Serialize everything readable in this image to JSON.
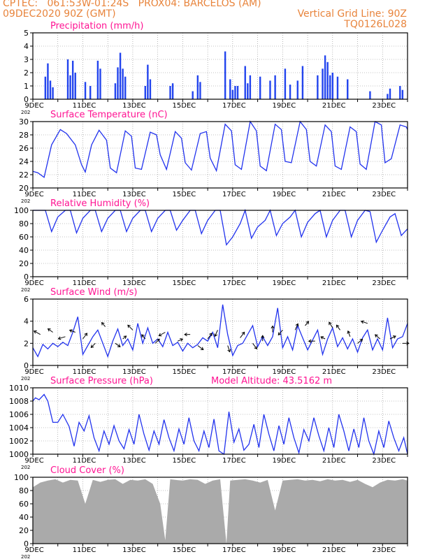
{
  "header": {
    "left_line1": "CPTEC:   061:53W-01:24S   PROX04: BARCELOS (AM)",
    "left_line2": "09DEC2020 90Z (GMT)",
    "right_line1": "Vertical Grid Line: 90Z",
    "right_line2": "TQ0126L028"
  },
  "colors": {
    "header": "#e8843c",
    "title": "#ff1493",
    "line": "#2233ee",
    "bar": "#2244ee",
    "cloud": "#aaaaaa",
    "grid": "#888888"
  },
  "x_tick_labels": [
    "9DEC",
    "11DEC",
    "13DEC",
    "15DEC",
    "17DEC",
    "19DEC",
    "21DEC",
    "23DEC"
  ],
  "corner_label": "202",
  "chart_data": [
    {
      "type": "bar",
      "title": "Precipitation (mm/h)",
      "ylim": [
        0,
        5
      ],
      "yticks": [
        0,
        1,
        2,
        3,
        4,
        5
      ],
      "x_range_days": [
        9,
        24
      ],
      "x_unit": "day of Dec 2020",
      "grid": true,
      "series": [
        {
          "x": [
            9.5,
            9.6,
            9.7,
            9.8,
            10.4,
            10.5,
            10.6,
            10.7,
            11.1,
            11.3,
            11.6,
            11.7,
            12.3,
            12.4,
            12.5,
            12.6,
            12.7,
            13.5,
            13.6,
            13.7,
            14.5,
            14.6,
            15.4,
            15.6,
            15.7,
            16.7,
            16.9,
            17.0,
            17.1,
            17.2,
            17.5,
            17.6,
            17.7,
            18.1,
            18.5,
            18.7,
            19.1,
            19.3,
            19.6,
            19.8,
            20.4,
            20.6,
            20.7,
            20.8,
            20.9,
            21.0,
            21.2,
            21.6,
            22.5,
            23.2,
            23.3,
            23.7,
            23.8
          ],
          "values": [
            1.7,
            2.7,
            1.4,
            0.9,
            3.0,
            1.8,
            2.9,
            2.0,
            1.3,
            1.0,
            2.9,
            2.3,
            1.2,
            2.4,
            3.5,
            2.3,
            1.7,
            1.0,
            2.6,
            1.5,
            1.0,
            1.2,
            0.6,
            1.8,
            1.3,
            3.6,
            1.5,
            0.7,
            1.0,
            1.0,
            2.5,
            1.2,
            1.8,
            1.7,
            1.4,
            1.8,
            2.3,
            1.1,
            1.4,
            2.5,
            1.8,
            2.3,
            3.3,
            2.8,
            1.8,
            2.0,
            1.7,
            1.5,
            0.6,
            0.4,
            0.8,
            1.0,
            0.7
          ]
        }
      ]
    },
    {
      "type": "line",
      "title": "Surface Temperature (nC)",
      "ylim": [
        20,
        30
      ],
      "yticks": [
        20,
        22,
        24,
        26,
        28,
        30
      ],
      "x_range_days": [
        9,
        24
      ],
      "grid": true,
      "series": [
        {
          "x": [
            9.0,
            9.2,
            9.45,
            9.75,
            10.1,
            10.35,
            10.7,
            10.95,
            11.1,
            11.35,
            11.65,
            11.95,
            12.1,
            12.35,
            12.7,
            12.95,
            13.1,
            13.35,
            13.7,
            13.95,
            14.1,
            14.35,
            14.7,
            14.95,
            15.1,
            15.35,
            15.7,
            15.95,
            16.1,
            16.35,
            16.7,
            16.95,
            17.1,
            17.35,
            17.7,
            17.95,
            18.1,
            18.35,
            18.7,
            18.95,
            19.1,
            19.35,
            19.7,
            19.95,
            20.1,
            20.35,
            20.7,
            20.95,
            21.1,
            21.35,
            21.7,
            21.95,
            22.1,
            22.35,
            22.7,
            22.95,
            23.1,
            23.35,
            23.7,
            23.95,
            24.0
          ],
          "values": [
            22.5,
            22.3,
            21.6,
            26.5,
            28.8,
            28.2,
            26.5,
            23.5,
            22.4,
            26.5,
            28.7,
            27.2,
            23.0,
            22.3,
            28.6,
            27.8,
            23.0,
            22.8,
            28.4,
            28.0,
            25.0,
            22.8,
            28.5,
            27.5,
            23.8,
            22.7,
            28.2,
            28.5,
            24.5,
            22.6,
            29.6,
            28.6,
            23.5,
            22.8,
            30.0,
            28.6,
            23.3,
            22.6,
            29.6,
            28.8,
            24.0,
            23.8,
            30.2,
            28.8,
            24.0,
            23.3,
            29.5,
            28.5,
            23.3,
            22.8,
            29.2,
            28.5,
            23.6,
            22.8,
            30.2,
            29.5,
            23.8,
            24.4,
            29.5,
            29.2,
            28.8
          ]
        }
      ]
    },
    {
      "type": "line",
      "title": "Relative Humidity (%)",
      "ylim": [
        0,
        100
      ],
      "yticks": [
        0,
        20,
        40,
        60,
        80,
        100
      ],
      "x_range_days": [
        9,
        24
      ],
      "grid": true,
      "series": [
        {
          "x": [
            9.0,
            9.3,
            9.5,
            9.75,
            10.0,
            10.3,
            10.5,
            10.75,
            11.0,
            11.3,
            11.5,
            11.75,
            12.0,
            12.3,
            12.5,
            12.75,
            13.0,
            13.3,
            13.5,
            13.75,
            14.0,
            14.3,
            14.5,
            14.75,
            15.0,
            15.3,
            15.5,
            15.75,
            16.0,
            16.3,
            16.5,
            16.75,
            17.0,
            17.3,
            17.5,
            17.75,
            18.0,
            18.3,
            18.5,
            18.75,
            19.0,
            19.3,
            19.5,
            19.75,
            20.0,
            20.3,
            20.5,
            20.75,
            21.0,
            21.3,
            21.5,
            21.75,
            22.0,
            22.3,
            22.5,
            22.75,
            23.0,
            23.3,
            23.5,
            23.75,
            24.0
          ],
          "values": [
            100,
            100,
            100,
            68,
            90,
            100,
            100,
            66,
            88,
            100,
            100,
            68,
            88,
            100,
            100,
            68,
            88,
            100,
            100,
            68,
            88,
            100,
            100,
            70,
            85,
            100,
            100,
            65,
            85,
            100,
            100,
            48,
            60,
            80,
            100,
            58,
            75,
            85,
            100,
            62,
            80,
            90,
            100,
            60,
            82,
            95,
            100,
            60,
            85,
            100,
            100,
            60,
            85,
            100,
            98,
            52,
            70,
            90,
            95,
            62,
            72
          ]
        }
      ]
    },
    {
      "type": "line",
      "title": "Surface Wind (m/s)",
      "ylim": [
        0,
        6
      ],
      "yticks": [
        0,
        2,
        4,
        6
      ],
      "x_range_days": [
        9,
        24
      ],
      "grid": true,
      "series": [
        {
          "x": [
            9.0,
            9.2,
            9.4,
            9.6,
            9.8,
            10.0,
            10.2,
            10.4,
            10.6,
            10.8,
            11.0,
            11.2,
            11.4,
            11.6,
            11.8,
            12.0,
            12.2,
            12.4,
            12.6,
            12.8,
            13.0,
            13.2,
            13.4,
            13.6,
            13.8,
            14.0,
            14.2,
            14.4,
            14.6,
            14.8,
            15.0,
            15.2,
            15.4,
            15.6,
            15.8,
            16.0,
            16.2,
            16.4,
            16.6,
            16.8,
            17.0,
            17.2,
            17.4,
            17.6,
            17.8,
            18.0,
            18.2,
            18.4,
            18.6,
            18.8,
            19.0,
            19.2,
            19.4,
            19.6,
            19.8,
            20.0,
            20.2,
            20.4,
            20.6,
            20.8,
            21.0,
            21.2,
            21.4,
            21.6,
            21.8,
            22.0,
            22.2,
            22.4,
            22.6,
            22.8,
            23.0,
            23.2,
            23.4,
            23.6,
            23.8,
            24.0
          ],
          "values": [
            1.6,
            0.8,
            1.9,
            1.5,
            2.0,
            1.7,
            2.1,
            1.8,
            3.0,
            4.4,
            1.0,
            1.8,
            2.6,
            3.2,
            2.0,
            0.8,
            2.2,
            3.3,
            1.8,
            2.4,
            1.4,
            3.8,
            2.0,
            3.4,
            2.0,
            2.4,
            1.7,
            3.0,
            1.8,
            2.1,
            1.3,
            2.0,
            1.6,
            1.9,
            2.5,
            2.2,
            3.0,
            1.6,
            5.5,
            2.8,
            0.9,
            1.8,
            2.0,
            2.8,
            3.6,
            1.7,
            2.6,
            1.8,
            2.6,
            5.2,
            1.6,
            2.6,
            1.4,
            3.6,
            2.5,
            1.4,
            2.3,
            3.2,
            1.0,
            2.4,
            3.4,
            1.7,
            2.5,
            1.5,
            2.4,
            1.2,
            2.5,
            3.2,
            1.4,
            2.4,
            1.4,
            4.3,
            1.6,
            2.4,
            2.6,
            3.8
          ]
        }
      ],
      "vectors": {
        "x": [
          9.3,
          9.8,
          10.3,
          10.7,
          11.0,
          11.5,
          11.9,
          12.3,
          12.6,
          13.0,
          13.5,
          13.9,
          14.3,
          14.8,
          15.3,
          15.6,
          16.0,
          16.4,
          16.8,
          17.3,
          17.8,
          18.2,
          18.6,
          19.0,
          19.5,
          19.9,
          20.3,
          20.7,
          21.0,
          21.3,
          21.7,
          22.0,
          22.4,
          22.9,
          23.3,
          23.8
        ],
        "y": [
          2.8,
          3.0,
          2.6,
          3.0,
          2.4,
          2.0,
          3.5,
          2.0,
          2.4,
          3.2,
          2.4,
          2.0,
          3.0,
          2.2,
          2.8,
          1.8,
          2.4,
          3.2,
          1.8,
          2.5,
          2.0,
          2.2,
          3.0,
          3.2,
          3.2,
          3.6,
          2.2,
          2.4,
          3.4,
          3.2,
          2.6,
          2.0,
          3.8,
          2.4,
          2.4,
          2.0
        ],
        "u": [
          -0.9,
          -0.7,
          -1.0,
          -0.8,
          0.6,
          -0.6,
          -0.5,
          0.7,
          0.5,
          -0.7,
          -0.5,
          0.6,
          -0.9,
          0.7,
          -0.8,
          0.8,
          0.6,
          -0.4,
          0.3,
          0.6,
          0.6,
          0.0,
          0.0,
          -0.6,
          0.4,
          0.5,
          -0.9,
          -0.6,
          -0.5,
          -0.5,
          -0.3,
          0.7,
          -0.9,
          -0.7,
          0.8,
          0.9
        ],
        "v": [
          0.5,
          0.5,
          -0.3,
          0.3,
          0.8,
          -0.6,
          0.6,
          -0.5,
          0.4,
          0.7,
          0.6,
          0.6,
          -0.5,
          0.3,
          0.0,
          -0.6,
          0.8,
          -0.9,
          -0.9,
          0.8,
          -0.8,
          0.8,
          0.9,
          -0.7,
          0.9,
          0.6,
          0.0,
          0.3,
          0.8,
          0.7,
          0.8,
          0.6,
          0.3,
          0.6,
          0.4,
          0.0
        ]
      }
    },
    {
      "type": "line",
      "title": "Surface Pressure (hPa)",
      "annotation": "Model Altitude: 43.5162 m",
      "ylim": [
        1000,
        1010
      ],
      "yticks": [
        1000,
        1002,
        1004,
        1006,
        1008,
        1010
      ],
      "x_range_days": [
        9,
        24
      ],
      "grid": true,
      "series": [
        {
          "x": [
            9.0,
            9.1,
            9.25,
            9.45,
            9.6,
            9.8,
            10.0,
            10.2,
            10.45,
            10.65,
            10.85,
            11.05,
            11.25,
            11.45,
            11.65,
            11.85,
            12.05,
            12.25,
            12.45,
            12.65,
            12.85,
            13.05,
            13.25,
            13.45,
            13.65,
            13.85,
            14.05,
            14.25,
            14.45,
            14.65,
            14.85,
            15.05,
            15.25,
            15.45,
            15.65,
            15.85,
            16.05,
            16.25,
            16.45,
            16.65,
            16.85,
            17.05,
            17.25,
            17.45,
            17.65,
            17.85,
            18.05,
            18.25,
            18.45,
            18.65,
            18.85,
            19.05,
            19.25,
            19.45,
            19.65,
            19.85,
            20.05,
            20.25,
            20.45,
            20.65,
            20.85,
            21.05,
            21.25,
            21.45,
            21.65,
            21.85,
            22.05,
            22.25,
            22.45,
            22.65,
            22.85,
            23.05,
            23.25,
            23.45,
            23.65,
            23.85,
            24.0
          ],
          "values": [
            1008.0,
            1008.5,
            1008.2,
            1009.0,
            1008.0,
            1004.8,
            1004.8,
            1006.0,
            1004.2,
            1001.2,
            1004.8,
            1003.5,
            1005.8,
            1002.5,
            1000.5,
            1003.5,
            1001.5,
            1004.3,
            1002.0,
            1000.8,
            1003.7,
            1001.5,
            1006.0,
            1003.0,
            1000.6,
            1003.5,
            1001.5,
            1005.2,
            1002.5,
            1000.5,
            1003.8,
            1001.5,
            1005.5,
            1002.0,
            1000.5,
            1003.5,
            1001.0,
            1005.3,
            1000.5,
            1000.0,
            1006.4,
            1001.8,
            1003.8,
            1000.6,
            1001.5,
            1004.5,
            1001.0,
            1006.0,
            1003.0,
            1000.5,
            1004.3,
            1001.5,
            1005.5,
            1002.5,
            1000.2,
            1003.7,
            1002.0,
            1005.5,
            1002.8,
            1000.5,
            1004.0,
            1001.0,
            1006.0,
            1003.5,
            1000.5,
            1003.8,
            1001.0,
            1005.5,
            1002.0,
            1000.0,
            1003.5,
            1001.0,
            1005.0,
            1002.5,
            1000.5,
            1002.5,
            1000.0
          ]
        }
      ]
    },
    {
      "type": "area",
      "title": "Cloud Cover (%)",
      "ylim": [
        0,
        100
      ],
      "yticks": [
        0,
        20,
        40,
        60,
        80,
        100
      ],
      "x_range_days": [
        9,
        24
      ],
      "grid": true,
      "series": [
        {
          "x": [
            9.0,
            9.3,
            9.6,
            9.9,
            10.2,
            10.5,
            10.8,
            11.1,
            11.4,
            11.7,
            12.0,
            12.3,
            12.6,
            12.9,
            13.2,
            13.5,
            13.8,
            14.1,
            14.3,
            14.5,
            14.7,
            15.0,
            15.3,
            15.6,
            15.9,
            16.2,
            16.5,
            16.75,
            16.9,
            17.2,
            17.5,
            17.8,
            18.1,
            18.4,
            18.7,
            19.0,
            19.3,
            19.6,
            19.9,
            20.2,
            20.5,
            20.8,
            21.1,
            21.4,
            21.7,
            22.0,
            22.3,
            22.6,
            22.9,
            23.2,
            23.5,
            23.8,
            24.0
          ],
          "values": [
            85,
            92,
            95,
            97,
            92,
            96,
            95,
            60,
            96,
            93,
            96,
            97,
            90,
            96,
            95,
            97,
            90,
            60,
            5,
            97,
            96,
            95,
            97,
            96,
            90,
            95,
            97,
            0,
            95,
            96,
            97,
            95,
            92,
            96,
            50,
            95,
            96,
            97,
            95,
            96,
            94,
            97,
            95,
            96,
            93,
            96,
            90,
            85,
            92,
            96,
            95,
            97,
            95
          ]
        }
      ]
    }
  ]
}
